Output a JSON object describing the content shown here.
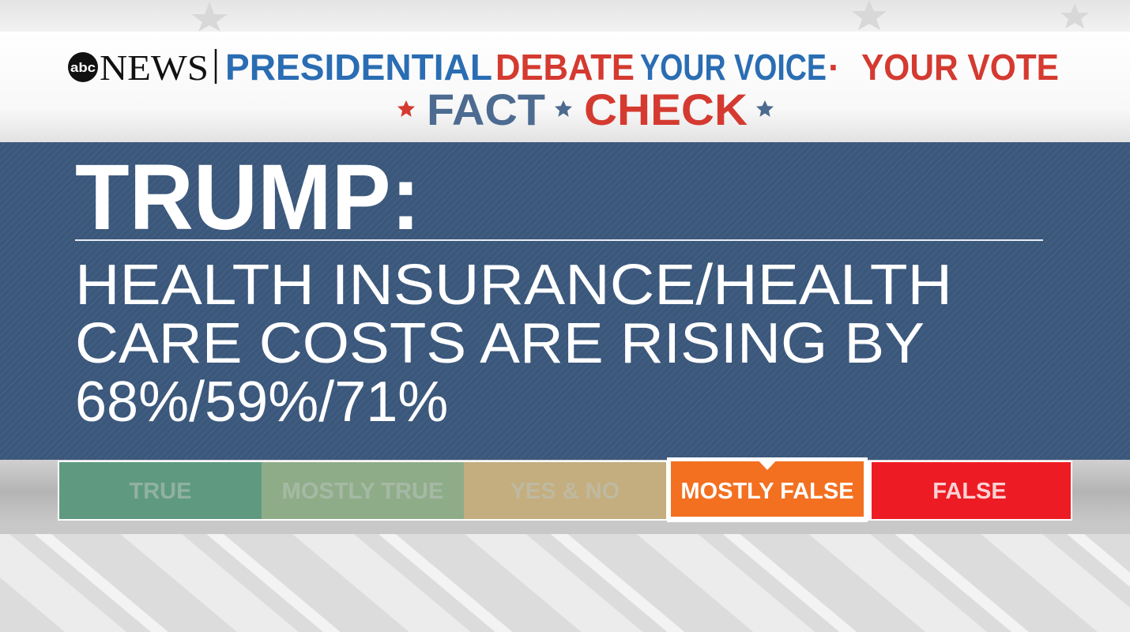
{
  "header": {
    "logo": "abc",
    "brand": "NEWS",
    "title_part1": "PRESIDENTIAL",
    "title_part2": "DEBATE",
    "tagline_part1": "YOUR VOICE",
    "separator": "·",
    "tagline_part2": "YOUR VOTE",
    "subtitle_part1": "FACT",
    "subtitle_part2": "CHECK"
  },
  "claim": {
    "speaker": "TRUMP:",
    "lines": [
      "HEALTH INSURANCE/HEALTH",
      "CARE COSTS ARE RISING BY",
      "68%/59%/71%"
    ]
  },
  "rating_scale": {
    "options": [
      {
        "label": "TRUE",
        "color": "#5f9a80"
      },
      {
        "label": "MOSTLY TRUE",
        "color": "#8fac88"
      },
      {
        "label": "YES & NO",
        "color": "#c4ad7e"
      },
      {
        "label": "MOSTLY FALSE",
        "color": "#f37021"
      },
      {
        "label": "FALSE",
        "color": "#ed1c24"
      }
    ],
    "selected": 3
  }
}
